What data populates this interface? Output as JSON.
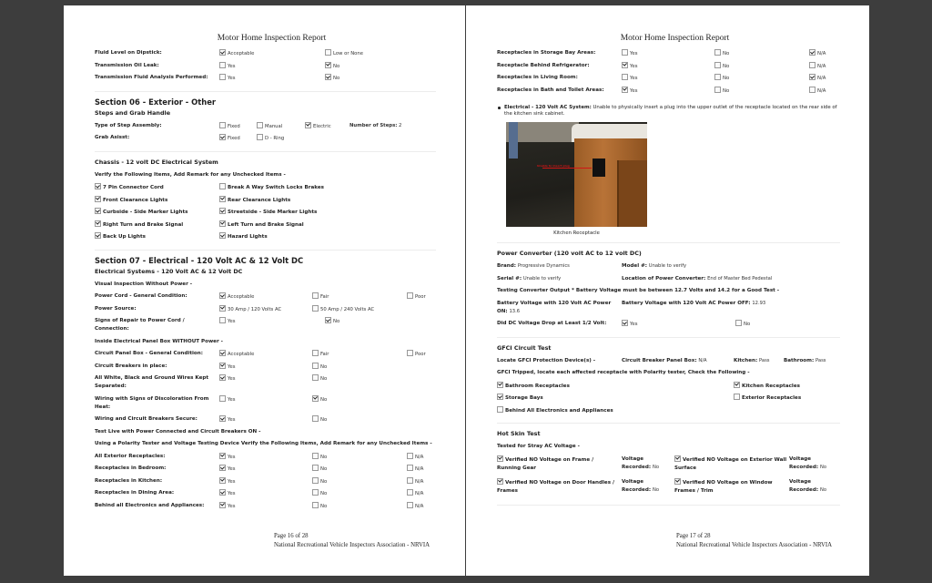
{
  "pages": [
    {
      "id": "left",
      "title": "Motor Home Inspection Report",
      "blocks": [
        {
          "type": "row",
          "label": "Fluid Level on Dipstick:",
          "options": [
            {
              "label": "Acceptable",
              "checked": true
            },
            {
              "label": "Low or None",
              "checked": false
            }
          ]
        },
        {
          "type": "row",
          "label": "Transmission Oil Leak:",
          "options": [
            {
              "label": "Yes",
              "checked": false
            },
            {
              "label": "No",
              "checked": true
            }
          ]
        },
        {
          "type": "row",
          "label": "Transmission Fluid Analysis Performed:",
          "options": [
            {
              "label": "Yes",
              "checked": false
            },
            {
              "label": "No",
              "checked": true
            }
          ]
        },
        {
          "type": "hr"
        },
        {
          "type": "h1",
          "text": "Section 06 - Exterior - Other"
        },
        {
          "type": "h2",
          "text": "Steps and Grab Handle"
        },
        {
          "type": "row-inline",
          "label": "Type of Step Assembly:",
          "options": [
            {
              "label": "Fixed",
              "checked": false
            },
            {
              "label": "Manual",
              "checked": false
            },
            {
              "label": "Electric",
              "checked": true
            }
          ],
          "extra": {
            "label": "Number of Steps:",
            "value": "2"
          }
        },
        {
          "type": "row-inline",
          "label": "Grab Asisst:",
          "options": [
            {
              "label": "Fixed",
              "checked": true
            },
            {
              "label": "D - Ring",
              "checked": false
            }
          ]
        },
        {
          "type": "hr"
        },
        {
          "type": "h2",
          "text": "Chassis - 12 volt DC Electrical System"
        },
        {
          "type": "h3",
          "text": "Verify the Following Items, Add Remark for any Unchecked Items -"
        },
        {
          "type": "checks",
          "items": [
            {
              "label": "7 Pin Connector Cord",
              "checked": true
            },
            {
              "label": "Break A Way Switch Locks Brakes",
              "checked": false
            }
          ]
        },
        {
          "type": "checks",
          "items": [
            {
              "label": "Front Clearance Lights",
              "checked": true
            },
            {
              "label": "Rear Clearance Lights",
              "checked": true
            }
          ]
        },
        {
          "type": "checks",
          "items": [
            {
              "label": "Curbside - Side Marker Lights",
              "checked": true
            },
            {
              "label": "Streetside - Side Marker Lights",
              "checked": true
            }
          ]
        },
        {
          "type": "checks",
          "items": [
            {
              "label": "Right Turn and Brake Signal",
              "checked": true
            },
            {
              "label": "Left Turn and Brake Signal",
              "checked": true
            }
          ]
        },
        {
          "type": "checks",
          "items": [
            {
              "label": "Back Up Lights",
              "checked": true
            },
            {
              "label": "Hazard Lights",
              "checked": true
            }
          ]
        },
        {
          "type": "hr"
        },
        {
          "type": "h1",
          "text": "Section 07 - Electrical - 120 Volt AC & 12 Volt DC"
        },
        {
          "type": "h2",
          "text": "Electrical Systems - 120 Volt AC & 12 Volt DC"
        },
        {
          "type": "h3",
          "text": "Visual Inspection Without Power -"
        },
        {
          "type": "row",
          "label": "Power Cord - General Condition:",
          "options": [
            {
              "label": "Acceptable",
              "checked": true
            },
            {
              "label": "Fair",
              "checked": false
            },
            {
              "label": "Poor",
              "checked": false
            }
          ]
        },
        {
          "type": "row",
          "label": "Power Source:",
          "options": [
            {
              "label": "30 Amp / 120 Volts AC",
              "checked": true
            },
            {
              "label": "50 Amp / 240 Volts AC",
              "checked": false
            }
          ],
          "grid": "three"
        },
        {
          "type": "row",
          "label": "Signs of Repair to Power Cord / Connection:",
          "options": [
            {
              "label": "Yes",
              "checked": false
            },
            {
              "label": "No",
              "checked": true
            }
          ]
        },
        {
          "type": "h3",
          "text": "Inside Electrical Panel Box WITHOUT Power -"
        },
        {
          "type": "row",
          "label": "Circuit Panel Box - General Condition:",
          "options": [
            {
              "label": "Acceptable",
              "checked": true
            },
            {
              "label": "Fair",
              "checked": false
            },
            {
              "label": "Poor",
              "checked": false
            }
          ]
        },
        {
          "type": "row",
          "label": "Circuit Breakers in place:",
          "options": [
            {
              "label": "Yes",
              "checked": true
            },
            {
              "label": "No",
              "checked": false
            }
          ],
          "grid": "three"
        },
        {
          "type": "row",
          "label": "All White, Black and Ground Wires Kept Separated:",
          "options": [
            {
              "label": "Yes",
              "checked": true
            },
            {
              "label": "No",
              "checked": false
            }
          ],
          "grid": "three"
        },
        {
          "type": "row",
          "label": "Wiring with Signs of Discoloration From Heat:",
          "options": [
            {
              "label": "Yes",
              "checked": false
            },
            {
              "label": "No",
              "checked": true
            }
          ],
          "grid": "three"
        },
        {
          "type": "row",
          "label": "Wiring and Circuit Breakers Secure:",
          "options": [
            {
              "label": "Yes",
              "checked": true
            },
            {
              "label": "No",
              "checked": false
            }
          ],
          "grid": "three"
        },
        {
          "type": "h3",
          "text": "Test Live with Power Connected and Circuit Breakers ON -"
        },
        {
          "type": "h3",
          "text": "Using a Polarity Tester and Voltage Testing Device Verify the Following Items, Add Remark for any Unchecked Items -"
        },
        {
          "type": "row",
          "label": "All Exterior Receptacles:",
          "options": [
            {
              "label": "Yes",
              "checked": true
            },
            {
              "label": "No",
              "checked": false
            },
            {
              "label": "N/A",
              "checked": false
            }
          ]
        },
        {
          "type": "row",
          "label": "Receptacles in Bedroom:",
          "options": [
            {
              "label": "Yes",
              "checked": true
            },
            {
              "label": "No",
              "checked": false
            },
            {
              "label": "N/A",
              "checked": false
            }
          ]
        },
        {
          "type": "row",
          "label": "Receptacles in Kitchen:",
          "options": [
            {
              "label": "Yes",
              "checked": true
            },
            {
              "label": "No",
              "checked": false
            },
            {
              "label": "N/A",
              "checked": false
            }
          ]
        },
        {
          "type": "row",
          "label": "Receptacles in Dining Area:",
          "options": [
            {
              "label": "Yes",
              "checked": true
            },
            {
              "label": "No",
              "checked": false
            },
            {
              "label": "N/A",
              "checked": false
            }
          ]
        },
        {
          "type": "row",
          "label": "Behind all Electronics and Appliances:",
          "options": [
            {
              "label": "Yes",
              "checked": true
            },
            {
              "label": "No",
              "checked": false
            },
            {
              "label": "N/A",
              "checked": false
            }
          ]
        }
      ],
      "footer": {
        "page": "Page 16 of 28",
        "org": "National Recreational Vehicle Inspectors Association - NRVIA"
      }
    },
    {
      "id": "right",
      "title": "Motor Home Inspection Report",
      "blocks": [
        {
          "type": "row",
          "label": "Receptacles in Storage Bay Areas:",
          "options": [
            {
              "label": "Yes",
              "checked": false
            },
            {
              "label": "No",
              "checked": false
            },
            {
              "label": "N/A",
              "checked": true
            }
          ]
        },
        {
          "type": "row",
          "label": "Receptacle Behind Refrigerator:",
          "options": [
            {
              "label": "Yes",
              "checked": true
            },
            {
              "label": "No",
              "checked": false
            },
            {
              "label": "N/A",
              "checked": false
            }
          ]
        },
        {
          "type": "row",
          "label": "Receptacles in Living Room:",
          "options": [
            {
              "label": "Yes",
              "checked": false
            },
            {
              "label": "No",
              "checked": false
            },
            {
              "label": "N/A",
              "checked": true
            }
          ]
        },
        {
          "type": "row",
          "label": "Receptacles in Bath and Toilet Areas:",
          "options": [
            {
              "label": "Yes",
              "checked": true
            },
            {
              "label": "No",
              "checked": false
            },
            {
              "label": "N/A",
              "checked": false
            }
          ]
        },
        {
          "type": "note",
          "label": "Electrical - 120 Volt AC System:",
          "text": "Unable to physically insert a plug into the upper outlet of the receptacle located on the rear side of the kitchen sink cabinet."
        },
        {
          "type": "photo",
          "caption": "Kitchen Receptacle",
          "annotation": "Unable to insert plug"
        },
        {
          "type": "hr"
        },
        {
          "type": "h2",
          "text": "Power Converter (120 volt AC to 12 volt DC)"
        },
        {
          "type": "kv",
          "items": [
            {
              "label": "Brand:",
              "value": "Progressive Dynamics"
            },
            {
              "label": "Model #:",
              "value": "Unable to verify"
            }
          ]
        },
        {
          "type": "kv",
          "items": [
            {
              "label": "Serial #:",
              "value": "Unable to verify"
            },
            {
              "label": "Location of Power Converter:",
              "value": "End of Master Bed Pedestal"
            }
          ]
        },
        {
          "type": "h3",
          "text": "Testing Converter Output * Battery Voltage must be between 12.7 Volts and 14.2 for a Good Test -"
        },
        {
          "type": "kv",
          "items": [
            {
              "label": "Battery Voltage with 120 Volt AC Power ON:",
              "value": "13.6"
            },
            {
              "label": "Battery Voltage with 120 Volt AC Power OFF:",
              "value": "12.93"
            }
          ]
        },
        {
          "type": "row",
          "label": "Did DC Voltage Drop at Least 1/2 Volt:",
          "options": [
            {
              "label": "Yes",
              "checked": true
            },
            {
              "label": "No",
              "checked": false
            }
          ]
        },
        {
          "type": "hr"
        },
        {
          "type": "h2",
          "text": "GFCI Circuit Test"
        },
        {
          "type": "kv",
          "items": [
            {
              "label": "Locate GFCI Protection Device(s) -",
              "value": ""
            },
            {
              "label": "Circuit Breaker Panel Box:",
              "value": "N/A"
            },
            {
              "label": "Kitchen:",
              "value": "Pass"
            },
            {
              "label": "Bathroom:",
              "value": "Pass"
            }
          ]
        },
        {
          "type": "h3",
          "text": "GFCI Tripped, locate each affected receptacle with Polarity tester, Check the Following -"
        },
        {
          "type": "checks-wide",
          "items": [
            {
              "label": "Bathroom Receptacles",
              "checked": true
            },
            {
              "label": "Kitchen Receptacles",
              "checked": true
            }
          ]
        },
        {
          "type": "checks-wide",
          "items": [
            {
              "label": "Storage Bays",
              "checked": true
            },
            {
              "label": "Exterior Receptacles",
              "checked": false
            }
          ]
        },
        {
          "type": "checks-wide",
          "items": [
            {
              "label": "Behind All Electronics and Appliances",
              "checked": false
            }
          ]
        },
        {
          "type": "hr"
        },
        {
          "type": "h2",
          "text": "Hot Skin Test"
        },
        {
          "type": "h3",
          "text": "Tested for Stray AC Voltage -"
        },
        {
          "type": "hot",
          "items": [
            {
              "label": "Verified NO Voltage on Frame / Running Gear",
              "checked": true,
              "vlabel": "Voltage Recorded:",
              "value": "No"
            },
            {
              "label": "Verified NO Voltage on Exterior Wall Surface",
              "checked": true,
              "vlabel": "Voltage Recorded:",
              "value": "No"
            }
          ]
        },
        {
          "type": "hot",
          "items": [
            {
              "label": "Verified NO Voltage on Door Handles / Frames",
              "checked": true,
              "vlabel": "Voltage Recorded:",
              "value": "No"
            },
            {
              "label": "Verified NO Voltage on Window Frames / Trim",
              "checked": true,
              "vlabel": "Voltage Recorded:",
              "value": "No"
            }
          ]
        },
        {
          "type": "hr"
        }
      ],
      "footer": {
        "page": "Page 17 of 28",
        "org": "National Recreational Vehicle Inspectors Association - NRVIA"
      }
    }
  ]
}
